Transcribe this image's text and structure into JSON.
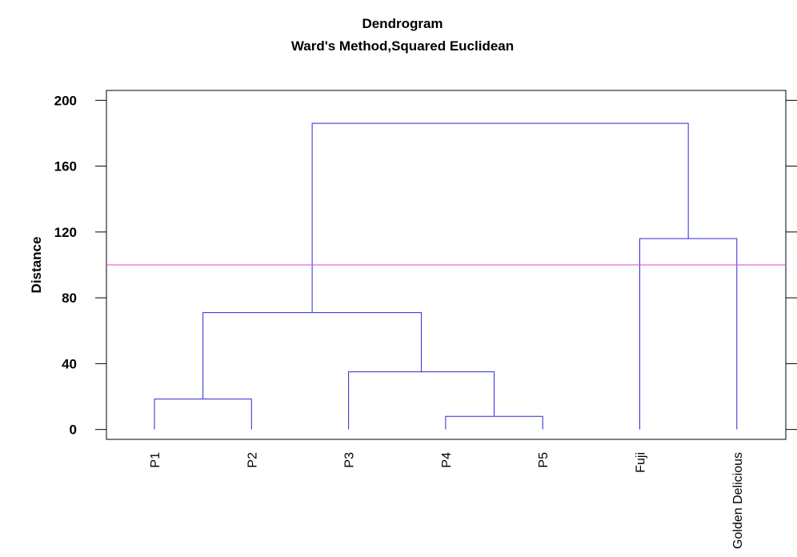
{
  "chart_data": {
    "type": "dendrogram",
    "title": "Dendrogram",
    "subtitle": "Ward's Method,Squared Euclidean",
    "y_label": "Distance",
    "leaves": [
      "P1",
      "P2",
      "P3",
      "P4",
      "P5",
      "Fuji",
      "Golden Delicious"
    ],
    "merges": [
      {
        "children": [
          0,
          1
        ],
        "height": 18.5
      },
      {
        "children": [
          3,
          4
        ],
        "height": 8
      },
      {
        "children": [
          2,
          8
        ],
        "height": 35
      },
      {
        "children": [
          7,
          9
        ],
        "height": 71
      },
      {
        "children": [
          5,
          6
        ],
        "height": 116
      },
      {
        "children": [
          10,
          11
        ],
        "height": 186
      }
    ],
    "color": "#2a2ad6",
    "cut_height": 100,
    "cut_color": "#e040e0",
    "ylim": [
      -6,
      206
    ],
    "yticks": [
      0,
      40,
      80,
      120,
      160,
      200
    ]
  }
}
